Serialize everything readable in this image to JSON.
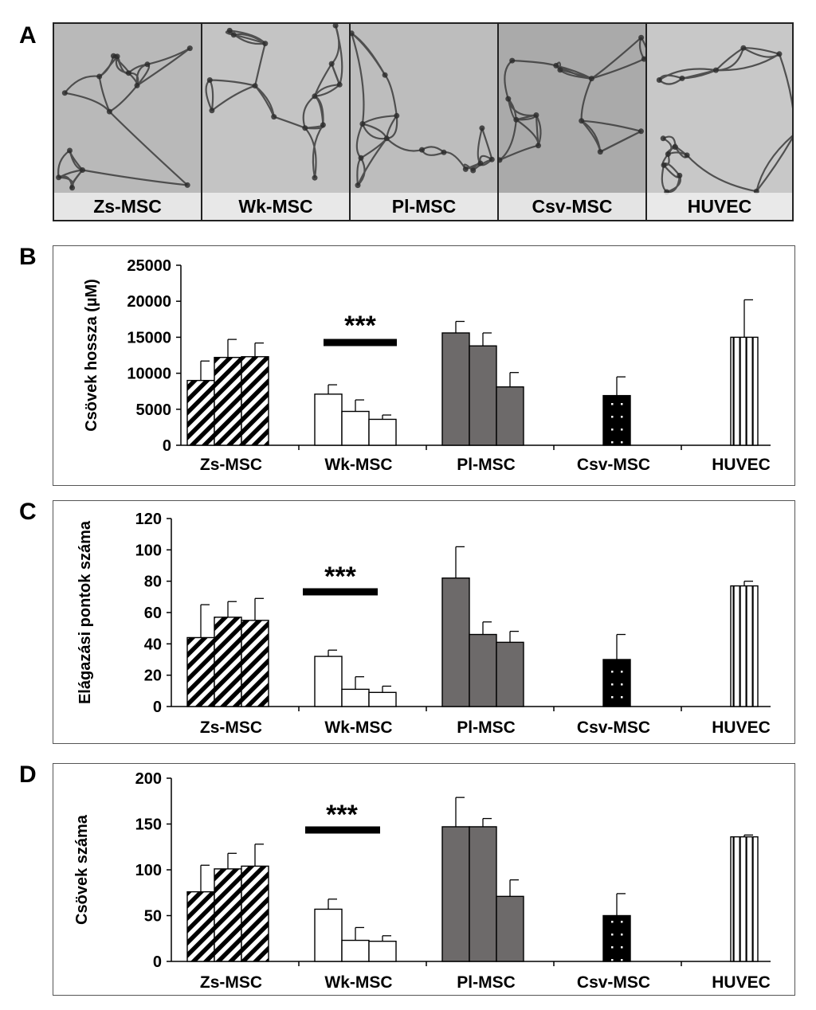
{
  "panels": {
    "a_letter": "A",
    "micrographs": [
      {
        "label": "Zs-MSC",
        "tone": "#b9b9b9"
      },
      {
        "label": "Wk-MSC",
        "tone": "#c4c4c4"
      },
      {
        "label": "Pl-MSC",
        "tone": "#bdbdbd"
      },
      {
        "label": "Csv-MSC",
        "tone": "#aaaaaa"
      },
      {
        "label": "HUVEC",
        "tone": "#c8c8c8"
      }
    ]
  },
  "colors": {
    "hatch": "#000000",
    "open": "#ffffff",
    "gray": "#6d6a6a",
    "black": "#000000",
    "stripe": "#ffffff"
  },
  "chart_data": [
    {
      "panel": "B",
      "type": "bar",
      "ylabel": "Csövek hossza (µM)",
      "ylim": [
        0,
        25000
      ],
      "yticks": [
        "0",
        "5000",
        "10000",
        "15000",
        "20000",
        "25000"
      ],
      "categories": [
        "Zs-MSC",
        "Wk-MSC",
        "Pl-MSC",
        "Csv-MSC",
        "HUVEC"
      ],
      "groups": [
        {
          "category": "Zs-MSC",
          "pattern": "diagonal",
          "values": [
            9000,
            12200,
            12300
          ],
          "errors": [
            2700,
            2500,
            1900
          ]
        },
        {
          "category": "Wk-MSC",
          "pattern": "open",
          "values": [
            7100,
            4700,
            3600
          ],
          "errors": [
            1300,
            1600,
            600
          ]
        },
        {
          "category": "Pl-MSC",
          "pattern": "gray",
          "values": [
            15600,
            13800,
            8100
          ],
          "errors": [
            1600,
            1800,
            2000
          ]
        },
        {
          "category": "Csv-MSC",
          "pattern": "dotted",
          "values": [
            6900
          ],
          "errors": [
            2600
          ]
        },
        {
          "category": "HUVEC",
          "pattern": "vertical",
          "values": [
            15000
          ],
          "errors": [
            5200
          ]
        }
      ],
      "annotation": "***"
    },
    {
      "panel": "C",
      "type": "bar",
      "ylabel": "Elágazási pontok száma",
      "ylim": [
        0,
        120
      ],
      "yticks": [
        "0",
        "20",
        "40",
        "60",
        "80",
        "100",
        "120"
      ],
      "categories": [
        "Zs-MSC",
        "Wk-MSC",
        "Pl-MSC",
        "Csv-MSC",
        "HUVEC"
      ],
      "groups": [
        {
          "category": "Zs-MSC",
          "pattern": "diagonal",
          "values": [
            44,
            57,
            55
          ],
          "errors": [
            21,
            10,
            14
          ]
        },
        {
          "category": "Wk-MSC",
          "pattern": "open",
          "values": [
            32,
            11,
            9
          ],
          "errors": [
            4,
            8,
            4
          ]
        },
        {
          "category": "Pl-MSC",
          "pattern": "gray",
          "values": [
            82,
            46,
            41
          ],
          "errors": [
            20,
            8,
            7
          ]
        },
        {
          "category": "Csv-MSC",
          "pattern": "dotted",
          "values": [
            30
          ],
          "errors": [
            16
          ]
        },
        {
          "category": "HUVEC",
          "pattern": "vertical",
          "values": [
            77
          ],
          "errors": [
            3
          ]
        }
      ],
      "annotation": "***"
    },
    {
      "panel": "D",
      "type": "bar",
      "ylabel": "Csövek száma",
      "ylim": [
        0,
        200
      ],
      "yticks": [
        "0",
        "50",
        "100",
        "150",
        "200"
      ],
      "categories": [
        "Zs-MSC",
        "Wk-MSC",
        "Pl-MSC",
        "Csv-MSC",
        "HUVEC"
      ],
      "groups": [
        {
          "category": "Zs-MSC",
          "pattern": "diagonal",
          "values": [
            76,
            101,
            104
          ],
          "errors": [
            29,
            17,
            24
          ]
        },
        {
          "category": "Wk-MSC",
          "pattern": "open",
          "values": [
            57,
            23,
            22
          ],
          "errors": [
            11,
            14,
            6
          ]
        },
        {
          "category": "Pl-MSC",
          "pattern": "gray",
          "values": [
            147,
            147,
            71
          ],
          "errors": [
            32,
            9,
            18
          ]
        },
        {
          "category": "Csv-MSC",
          "pattern": "dotted",
          "values": [
            50
          ],
          "errors": [
            24
          ]
        },
        {
          "category": "HUVEC",
          "pattern": "vertical",
          "values": [
            136
          ],
          "errors": [
            2
          ]
        }
      ],
      "annotation": "***"
    }
  ]
}
